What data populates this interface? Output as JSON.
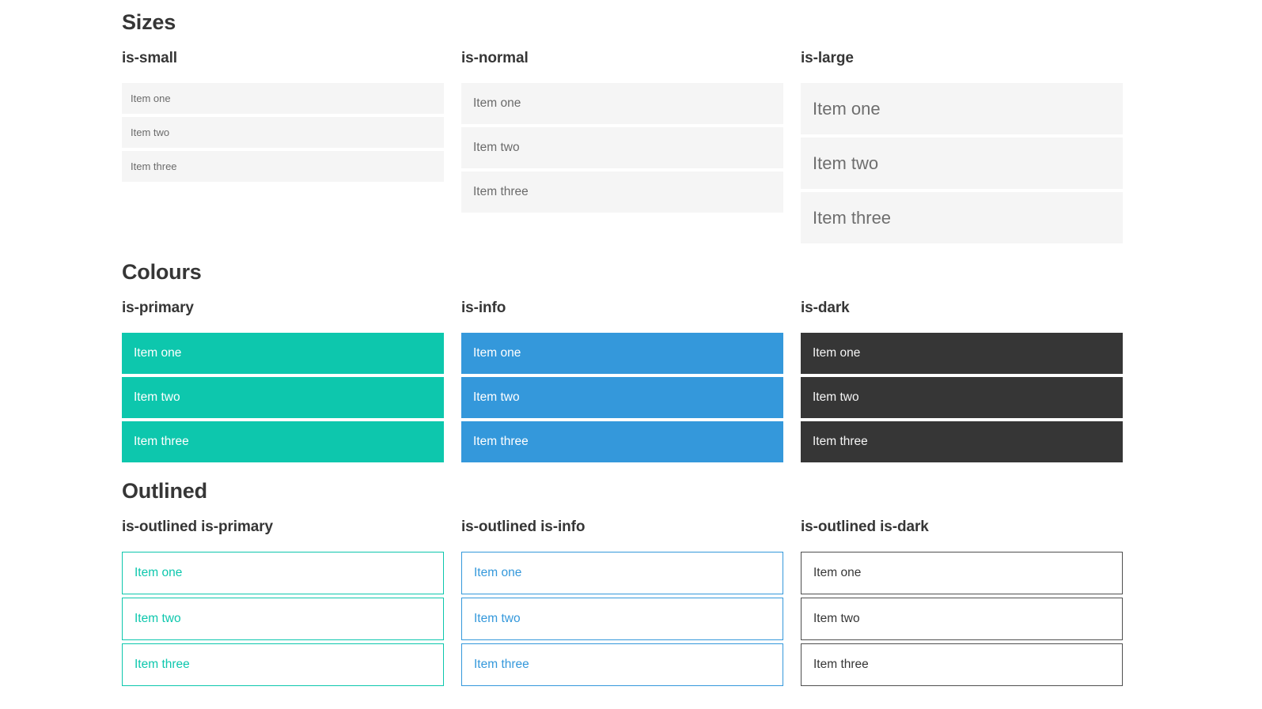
{
  "colors": {
    "primary": "#0dc7ad",
    "info": "#3498db",
    "dark": "#363636",
    "item_bg": "#f5f5f5",
    "item_text": "#6b6b6b",
    "dark_item_text": "#f5f5f5",
    "outlined_dark_border": "#4f4f4f",
    "heading": "#363636",
    "page_bg": "#ffffff"
  },
  "sections": [
    {
      "title": "Sizes",
      "groups": [
        {
          "label": "is-small",
          "items": [
            "Item one",
            "Item two",
            "Item three"
          ]
        },
        {
          "label": "is-normal",
          "items": [
            "Item one",
            "Item two",
            "Item three"
          ]
        },
        {
          "label": "is-large",
          "items": [
            "Item one",
            "Item two",
            "Item three"
          ]
        }
      ]
    },
    {
      "title": "Colours",
      "groups": [
        {
          "label": "is-primary",
          "items": [
            "Item one",
            "Item two",
            "Item three"
          ]
        },
        {
          "label": "is-info",
          "items": [
            "Item one",
            "Item two",
            "Item three"
          ]
        },
        {
          "label": "is-dark",
          "items": [
            "Item one",
            "Item two",
            "Item three"
          ]
        }
      ]
    },
    {
      "title": "Outlined",
      "groups": [
        {
          "label": "is-outlined is-primary",
          "items": [
            "Item one",
            "Item two",
            "Item three"
          ]
        },
        {
          "label": "is-outlined is-info",
          "items": [
            "Item one",
            "Item two",
            "Item three"
          ]
        },
        {
          "label": "is-outlined is-dark",
          "items": [
            "Item one",
            "Item two",
            "Item three"
          ]
        }
      ]
    }
  ]
}
